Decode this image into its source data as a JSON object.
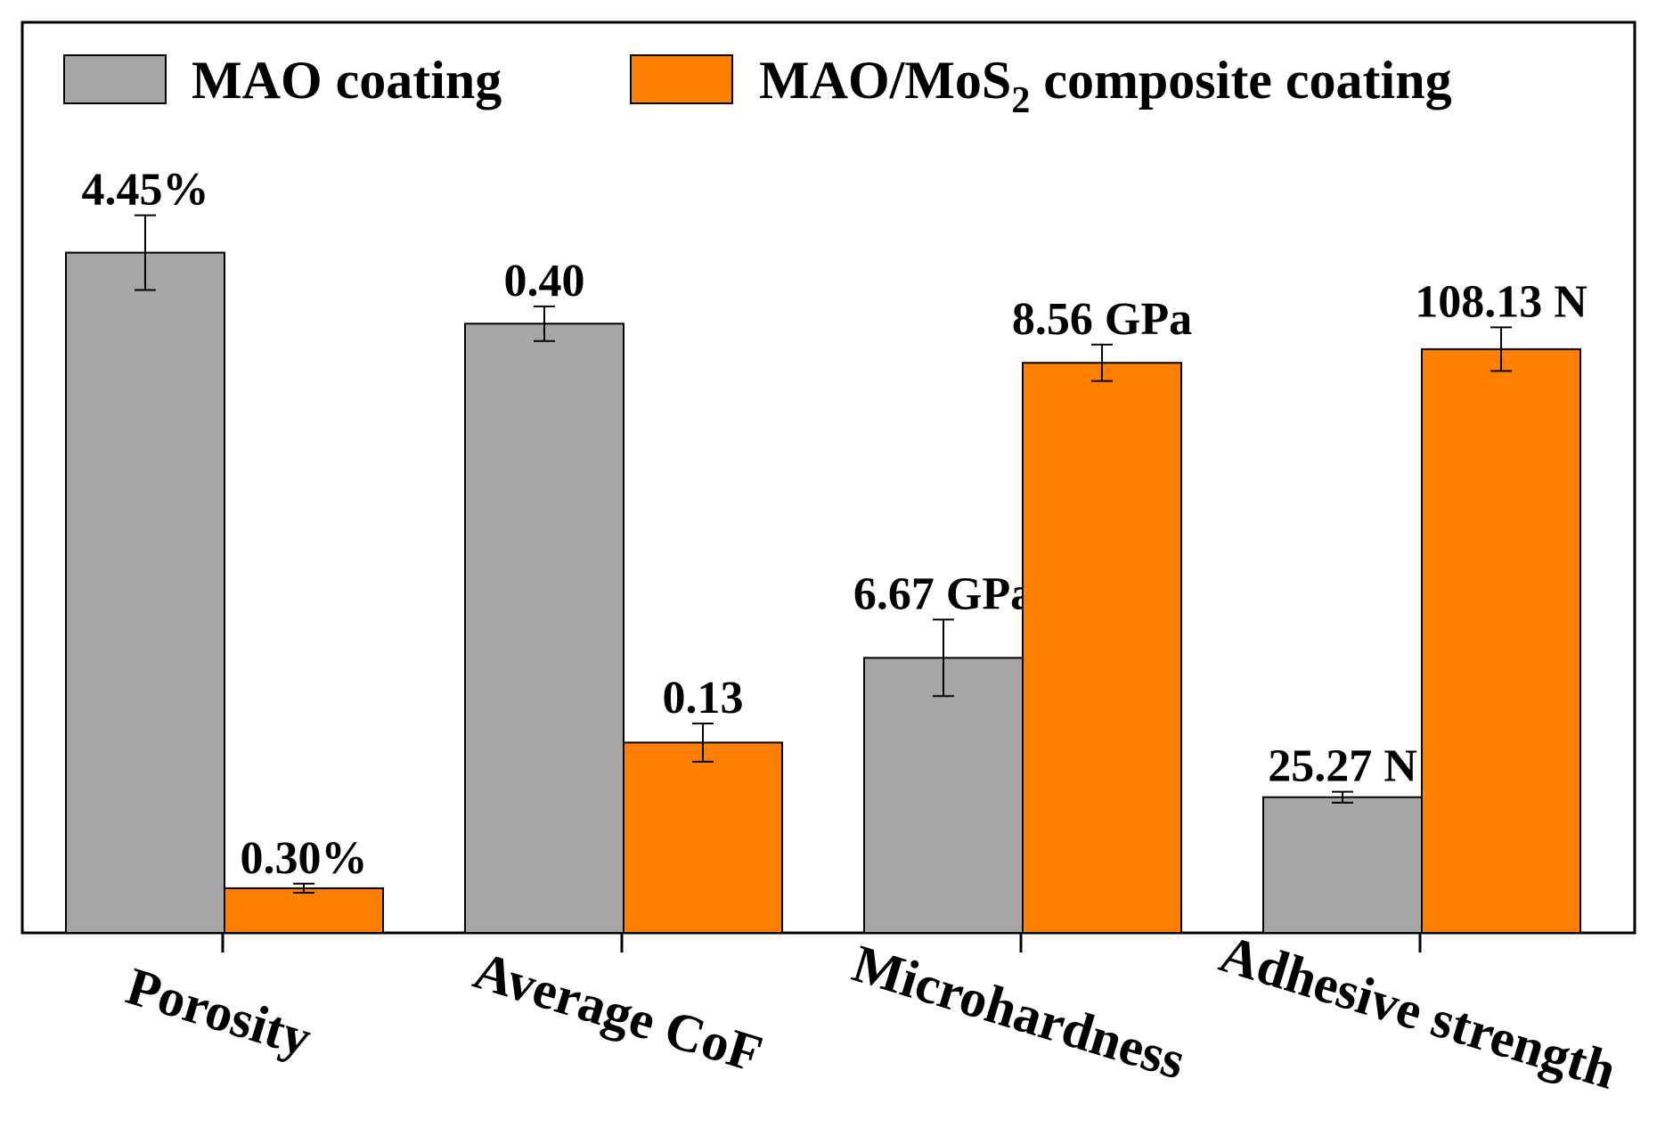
{
  "chart_data": {
    "type": "bar",
    "categories": [
      "Porosity",
      "Average CoF",
      "Microhardness",
      "Adhesive strength"
    ],
    "series": [
      {
        "name": "MAO coating",
        "color": "#a6a6a6",
        "heights_rel": [
          0.747,
          0.669,
          0.302,
          0.149
        ],
        "err_rel": [
          0.041,
          0.019,
          0.042,
          0.006
        ],
        "labels": [
          "4.45%",
          "0.40",
          "6.67 GPa",
          "25.27 N"
        ]
      },
      {
        "name_main": "MAO/MoS",
        "name_sub": "2",
        "name_rest": " composite coating",
        "color": "#ff8000",
        "heights_rel": [
          0.049,
          0.209,
          0.626,
          0.641
        ],
        "err_rel": [
          0.005,
          0.021,
          0.02,
          0.024
        ],
        "labels": [
          "0.30%",
          "0.13",
          "8.56 GPa",
          "108.13 N"
        ]
      }
    ],
    "legend_position": "top"
  }
}
